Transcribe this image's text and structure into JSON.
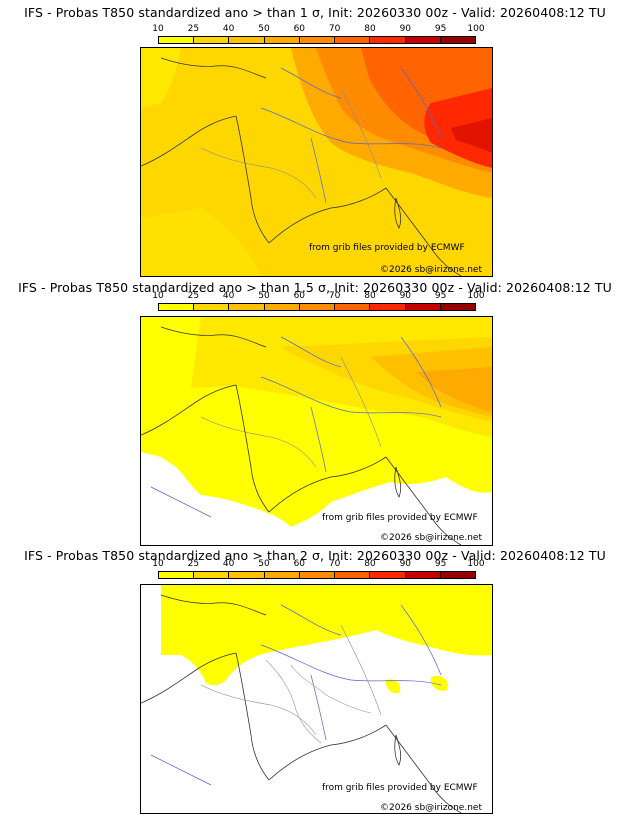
{
  "legend": {
    "ticks": [
      "10",
      "25",
      "40",
      "50",
      "60",
      "70",
      "80",
      "90",
      "95",
      "100"
    ],
    "colors": [
      "#ffff00",
      "#ffd700",
      "#ffc000",
      "#ffaa00",
      "#ff8c00",
      "#ff6400",
      "#ff2800",
      "#c80000",
      "#960000",
      "#640000"
    ]
  },
  "credits": {
    "source": "from grib files provided by ECMWF",
    "copyright": "©2026 sb@irizone.net"
  },
  "panels": [
    {
      "title": "IFS - Probas T850  standardized ano > than 1 σ, Init: 20260330 00z - Valid: 20260408:12 TU"
    },
    {
      "title": "IFS - Probas T850  standardized ano > than 1.5 σ, Init: 20260330 00z - Valid: 20260408:12 TU"
    },
    {
      "title": "IFS - Probas T850  standardized ano > than 2 σ, Init: 20260330 00z - Valid: 20260408:12 TU"
    }
  ]
}
